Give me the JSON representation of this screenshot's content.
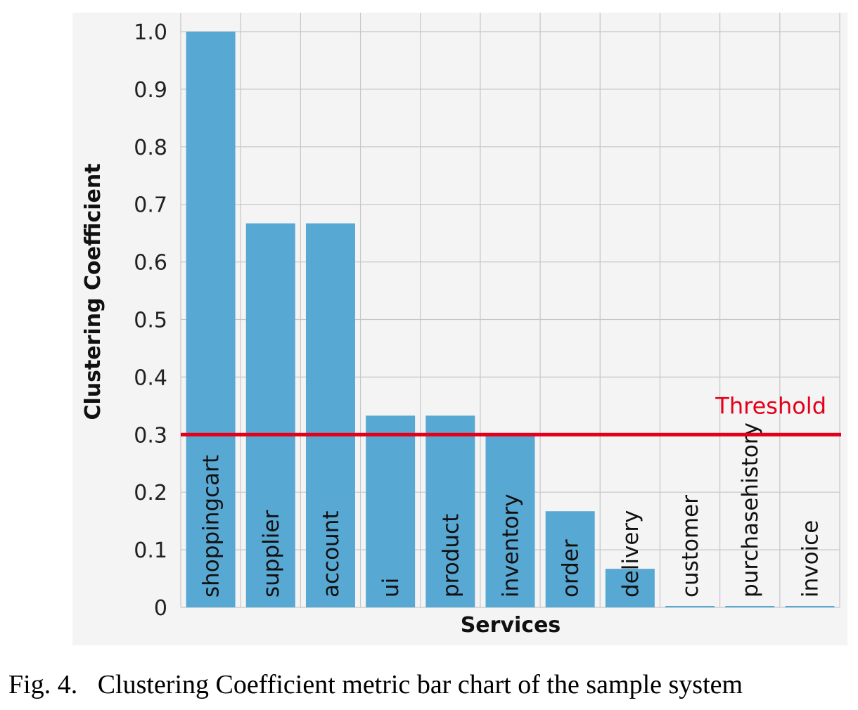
{
  "chart_data": {
    "type": "bar",
    "xlabel": "Services",
    "ylabel": "Clustering Coefficient",
    "ylim": [
      0,
      1.0
    ],
    "yticks": [
      "0",
      "0.1",
      "0.2",
      "0.3",
      "0.4",
      "0.5",
      "0.6",
      "0.7",
      "0.8",
      "0.9",
      "1.0"
    ],
    "categories": [
      "shoppingcart",
      "supplier",
      "account",
      "ui",
      "product",
      "inventory",
      "order",
      "delivery",
      "customer",
      "purchasehistory",
      "invoice"
    ],
    "values": [
      1.0,
      0.667,
      0.667,
      0.333,
      0.333,
      0.3,
      0.167,
      0.067,
      0,
      0,
      0
    ],
    "bar_color": "#58a8d4",
    "grid": true,
    "threshold": {
      "label": "Threshold",
      "value": 0.3,
      "color": "#e3001b"
    }
  },
  "caption": "Fig. 4.   Clustering Coefficient metric bar chart of the sample system"
}
